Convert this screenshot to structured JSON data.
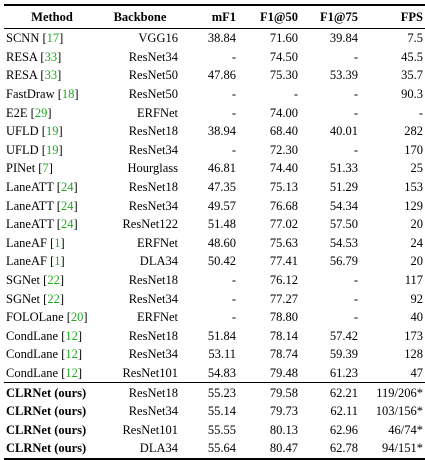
{
  "headers": [
    "Method",
    "Backbone",
    "mF1",
    "F1@50",
    "F1@75",
    "FPS"
  ],
  "rows": [
    {
      "method": "SCNN",
      "ref": "17",
      "backbone": "VGG16",
      "mf1": "38.84",
      "f1_50": "71.60",
      "f1_75": "39.84",
      "fps": "7.5"
    },
    {
      "method": "RESA",
      "ref": "33",
      "backbone": "ResNet34",
      "mf1": "-",
      "f1_50": "74.50",
      "f1_75": "-",
      "fps": "45.5"
    },
    {
      "method": "RESA",
      "ref": "33",
      "backbone": "ResNet50",
      "mf1": "47.86",
      "f1_50": "75.30",
      "f1_75": "53.39",
      "fps": "35.7"
    },
    {
      "method": "FastDraw",
      "ref": "18",
      "backbone": "ResNet50",
      "mf1": "-",
      "f1_50": "-",
      "f1_75": "-",
      "fps": "90.3"
    },
    {
      "method": "E2E",
      "ref": "29",
      "backbone": "ERFNet",
      "mf1": "-",
      "f1_50": "74.00",
      "f1_75": "-",
      "fps": "-"
    },
    {
      "method": "UFLD",
      "ref": "19",
      "backbone": "ResNet18",
      "mf1": "38.94",
      "f1_50": "68.40",
      "f1_75": "40.01",
      "fps": "282",
      "fps_bold": true
    },
    {
      "method": "UFLD",
      "ref": "19",
      "backbone": "ResNet34",
      "mf1": "-",
      "f1_50": "72.30",
      "f1_75": "-",
      "fps": "170"
    },
    {
      "method": "PINet",
      "ref": "7",
      "backbone": "Hourglass",
      "mf1": "46.81",
      "f1_50": "74.40",
      "f1_75": "51.33",
      "fps": "25"
    },
    {
      "method": "LaneATT",
      "ref": "24",
      "backbone": "ResNet18",
      "mf1": "47.35",
      "f1_50": "75.13",
      "f1_75": "51.29",
      "fps": "153"
    },
    {
      "method": "LaneATT",
      "ref": "24",
      "backbone": "ResNet34",
      "mf1": "49.57",
      "f1_50": "76.68",
      "f1_75": "54.34",
      "fps": "129"
    },
    {
      "method": "LaneATT",
      "ref": "24",
      "backbone": "ResNet122",
      "mf1": "51.48",
      "f1_50": "77.02",
      "f1_75": "57.50",
      "fps": "20"
    },
    {
      "method": "LaneAF",
      "ref": "1",
      "backbone": "ERFNet",
      "mf1": "48.60",
      "f1_50": "75.63",
      "f1_75": "54.53",
      "fps": "24"
    },
    {
      "method": "LaneAF",
      "ref": "1",
      "backbone": "DLA34",
      "mf1": "50.42",
      "f1_50": "77.41",
      "f1_75": "56.79",
      "fps": "20"
    },
    {
      "method": "SGNet",
      "ref": "22",
      "backbone": "ResNet18",
      "mf1": "-",
      "f1_50": "76.12",
      "f1_75": "-",
      "fps": "117"
    },
    {
      "method": "SGNet",
      "ref": "22",
      "backbone": "ResNet34",
      "mf1": "-",
      "f1_50": "77.27",
      "f1_75": "-",
      "fps": "92"
    },
    {
      "method": "FOLOLane",
      "ref": "20",
      "backbone": "ERFNet",
      "mf1": "-",
      "f1_50": "78.80",
      "f1_75": "-",
      "fps": "40"
    },
    {
      "method": "CondLane",
      "ref": "12",
      "backbone": "ResNet18",
      "mf1": "51.84",
      "f1_50": "78.14",
      "f1_75": "57.42",
      "fps": "173"
    },
    {
      "method": "CondLane",
      "ref": "12",
      "backbone": "ResNet34",
      "mf1": "53.11",
      "f1_50": "78.74",
      "f1_75": "59.39",
      "fps": "128"
    },
    {
      "method": "CondLane",
      "ref": "12",
      "backbone": "ResNet101",
      "mf1": "54.83",
      "f1_50": "79.48",
      "f1_75": "61.23",
      "fps": "47"
    }
  ],
  "ours": [
    {
      "method": "CLRNet (ours)",
      "backbone": "ResNet18",
      "mf1": "55.23",
      "f1_50": "79.58",
      "f1_75": "62.21",
      "fps": "119/206*"
    },
    {
      "method": "CLRNet (ours)",
      "backbone": "ResNet34",
      "mf1": "55.14",
      "f1_50": "79.73",
      "f1_75": "62.11",
      "fps": "103/156*"
    },
    {
      "method": "CLRNet (ours)",
      "backbone": "ResNet101",
      "mf1": "55.55",
      "f1_50": "80.13",
      "f1_75": "62.96",
      "fps": "46/74*",
      "f1_75_bold": true
    },
    {
      "method": "CLRNet (ours)",
      "backbone": "DLA34",
      "mf1": "55.64",
      "f1_50": "80.47",
      "f1_75": "62.78",
      "fps": "94/151*",
      "mf1_bold": true,
      "f1_50_bold": true
    }
  ]
}
